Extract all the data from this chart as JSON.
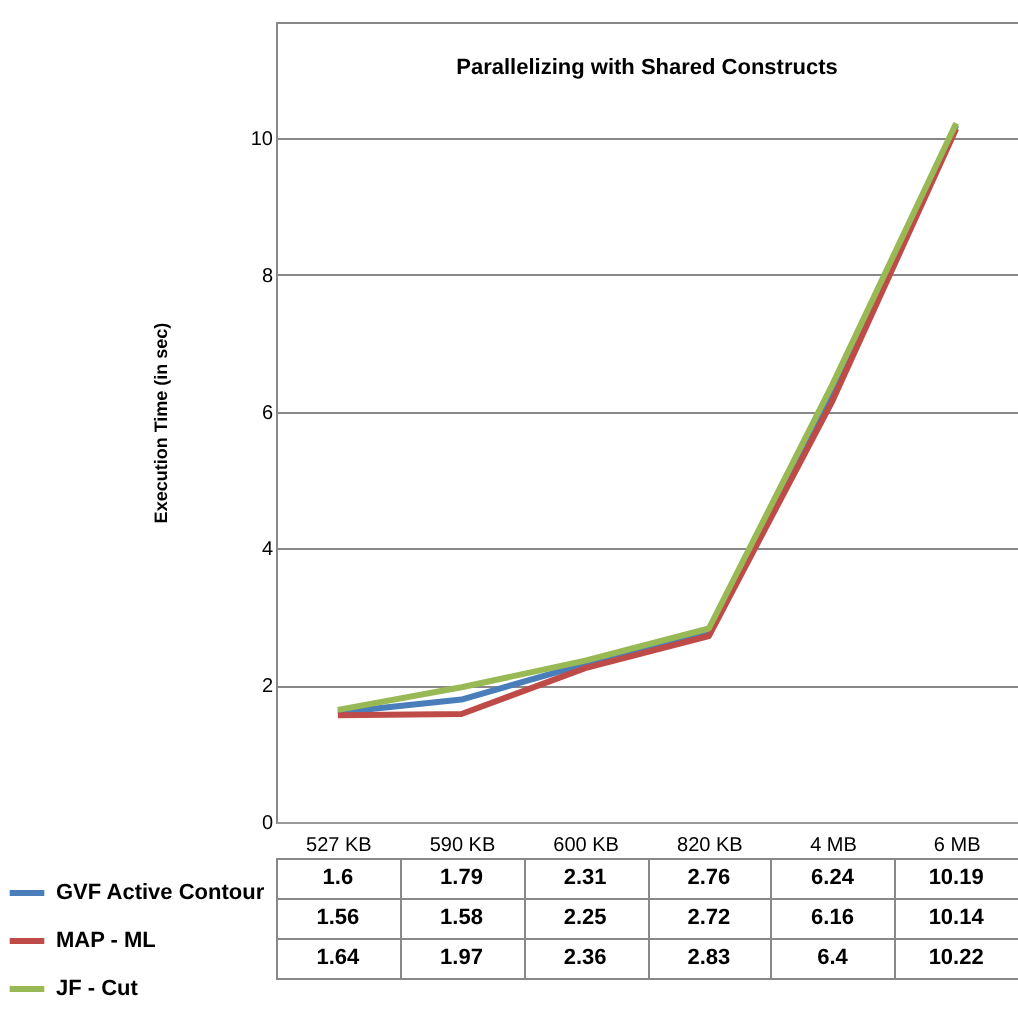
{
  "chart_data": {
    "type": "line",
    "title": "Parallelizing with Shared Constructs",
    "ylabel": "Execution Time (in sec)",
    "categories": [
      "527 KB",
      "590 KB",
      "600 KB",
      "820 KB",
      "4 MB",
      "6 MB"
    ],
    "series": [
      {
        "name": "GVF Active Contour",
        "color": "#4a7ebb",
        "values": [
          1.6,
          1.79,
          2.31,
          2.76,
          6.24,
          10.19
        ]
      },
      {
        "name": "MAP - ML",
        "color": "#be4b48",
        "values": [
          1.56,
          1.58,
          2.25,
          2.72,
          6.16,
          10.14
        ]
      },
      {
        "name": "JF - Cut",
        "color": "#98b954",
        "values": [
          1.64,
          1.97,
          2.36,
          2.83,
          6.4,
          10.22
        ]
      }
    ],
    "ylim": [
      0,
      11.7
    ],
    "yticks": [
      0,
      2,
      4,
      6,
      8,
      10
    ],
    "grid": "y",
    "legend": "bottom left",
    "data_labels": true,
    "marker": "none",
    "line_style": "solid"
  }
}
